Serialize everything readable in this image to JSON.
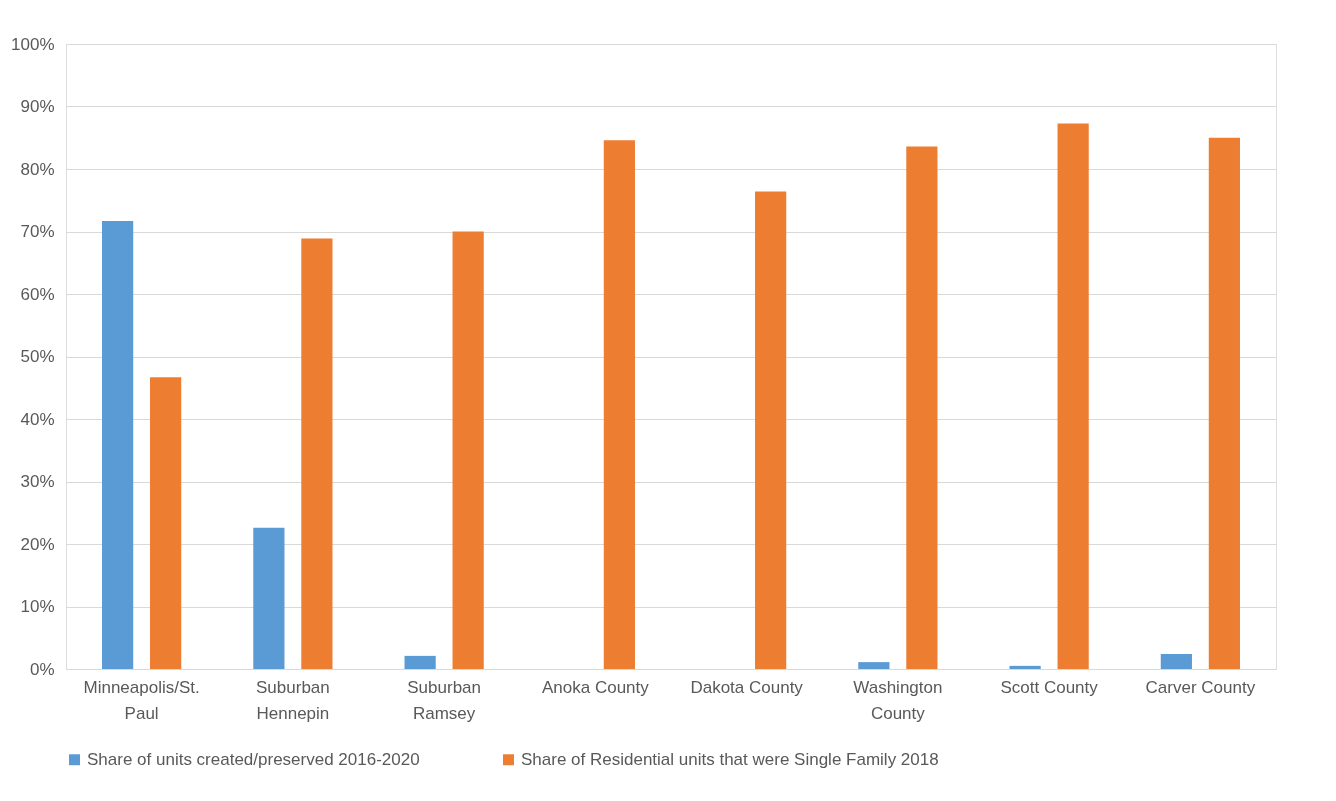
{
  "chart_data": {
    "type": "bar",
    "categories": [
      "Minneapolis/St. Paul",
      "Suburban Hennepin",
      "Suburban Ramsey",
      "Anoka County",
      "Dakota County",
      "Washington County",
      "Scott County",
      "Carver County"
    ],
    "series": [
      {
        "name": "Share of units created/preserved 2016-2020",
        "color": "#5b9bd5",
        "values": [
          71.7,
          22.6,
          2.1,
          0,
          0,
          1.1,
          0.5,
          2.4
        ]
      },
      {
        "name": "Share of Residential units that were Single Family 2018",
        "color": "#ed7d31",
        "values": [
          46.7,
          68.9,
          70.0,
          84.6,
          76.4,
          83.6,
          87.3,
          85.0
        ]
      }
    ],
    "ylim": [
      0,
      100
    ],
    "yticks": [
      {
        "value": 0,
        "label": "0%"
      },
      {
        "value": 10,
        "label": "10%"
      },
      {
        "value": 20,
        "label": "20%"
      },
      {
        "value": 30,
        "label": "30%"
      },
      {
        "value": 40,
        "label": "40%"
      },
      {
        "value": 50,
        "label": "50%"
      },
      {
        "value": 60,
        "label": "60%"
      },
      {
        "value": 70,
        "label": "70%"
      },
      {
        "value": 80,
        "label": "80%"
      },
      {
        "value": 90,
        "label": "90%"
      },
      {
        "value": 100,
        "label": "100%"
      }
    ],
    "grid": "y",
    "legend": "bottom"
  }
}
